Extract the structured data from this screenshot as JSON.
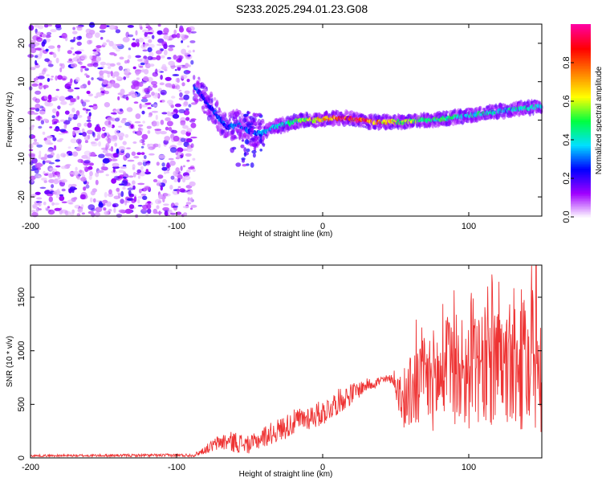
{
  "title": "S233.2025.294.01.23.G08",
  "chart_data": [
    {
      "type": "heatmap",
      "name": "spectrogram",
      "title": "S233.2025.294.01.23.G08",
      "xlabel": "Height of straight line (km)",
      "ylabel": "Frequency (Hz)",
      "xlim": [
        -200,
        150
      ],
      "ylim": [
        -25,
        25
      ],
      "xticks": [
        -200,
        -100,
        0,
        100
      ],
      "yticks": [
        -20,
        -10,
        0,
        10,
        20
      ],
      "colorbar": {
        "label": "Normalized spectral amplitude",
        "range": [
          0,
          1
        ],
        "ticks": [
          "0.0",
          "0.2",
          "0.4",
          "0.6",
          "0.8"
        ],
        "tick_values": [
          0.0,
          0.2,
          0.4,
          0.6,
          0.8
        ],
        "colors": [
          "#ffffff",
          "#a000ff",
          "#0000ff",
          "#00e0ff",
          "#00ff40",
          "#ffff00",
          "#ff8000",
          "#ff0000",
          "#ff00a0"
        ]
      },
      "noise_region_x": [
        -200,
        -88
      ],
      "ridge": {
        "x": [
          -88,
          -80,
          -72,
          -65,
          -58,
          -50,
          -42,
          -35,
          -25,
          -15,
          -5,
          5,
          15,
          25,
          35,
          45,
          55,
          65,
          75,
          85,
          95,
          105,
          115,
          125,
          135,
          150
        ],
        "freq": [
          9,
          5,
          1,
          -2,
          -1,
          -3,
          -3.5,
          -2,
          -1,
          0,
          0,
          0.5,
          0.5,
          0,
          -0.5,
          -0.5,
          -0.5,
          0,
          0,
          0.5,
          1,
          1.5,
          2,
          2.5,
          3,
          3.5
        ],
        "amp": [
          0.3,
          0.25,
          0.3,
          0.3,
          0.35,
          0.3,
          0.35,
          0.4,
          0.45,
          0.55,
          0.65,
          0.75,
          0.9,
          0.95,
          0.8,
          0.7,
          0.6,
          0.55,
          0.5,
          0.5,
          0.45,
          0.45,
          0.45,
          0.45,
          0.45,
          0.45
        ]
      }
    },
    {
      "type": "line",
      "name": "snr",
      "xlabel": "Height of straight line (km)",
      "ylabel": "SNR (10 * v/v)",
      "xlim": [
        -200,
        150
      ],
      "ylim": [
        0,
        1800
      ],
      "xticks": [
        -200,
        -100,
        0,
        100
      ],
      "yticks": [
        0,
        500,
        1000,
        1500
      ],
      "series": [
        {
          "name": "SNR",
          "color": "#ee3333",
          "envelope": {
            "x": [
              -200,
              -88,
              -80,
              -70,
              -60,
              -50,
              -40,
              -30,
              -20,
              -10,
              0,
              10,
              20,
              30,
              40,
              48,
              55,
              62,
              70,
              80,
              90,
              100,
              110,
              120,
              130,
              140,
              150
            ],
            "mid": [
              20,
              25,
              80,
              150,
              150,
              120,
              200,
              260,
              330,
              380,
              420,
              520,
              600,
              680,
              720,
              740,
              500,
              650,
              700,
              750,
              780,
              780,
              800,
              800,
              820,
              850,
              900
            ],
            "amp": [
              10,
              15,
              40,
              80,
              100,
              80,
              100,
              110,
              120,
              120,
              120,
              120,
              100,
              60,
              50,
              40,
              250,
              400,
              450,
              500,
              500,
              520,
              520,
              550,
              550,
              650,
              700
            ]
          }
        }
      ]
    }
  ]
}
